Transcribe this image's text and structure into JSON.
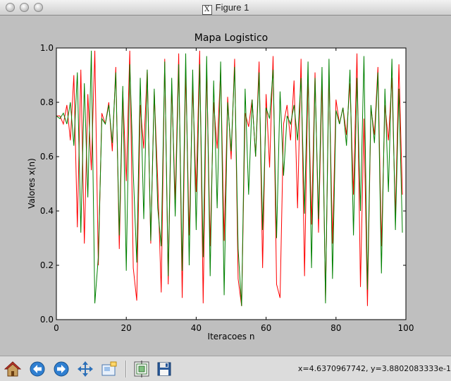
{
  "window": {
    "title": "Figure 1"
  },
  "toolbar": {
    "buttons": [
      {
        "name": "home-button",
        "icon": "home-icon"
      },
      {
        "name": "back-button",
        "icon": "back-arrow-icon"
      },
      {
        "name": "forward-button",
        "icon": "forward-arrow-icon"
      },
      {
        "name": "pan-button",
        "icon": "move-arrows-icon"
      },
      {
        "name": "zoom-button",
        "icon": "zoom-rect-icon"
      },
      {
        "name": "subplots-button",
        "icon": "subplots-icon"
      },
      {
        "name": "save-button",
        "icon": "floppy-disk-icon"
      }
    ],
    "coords": "x=4.6370967742, y=3.8802083333e-1"
  },
  "chart_data": {
    "type": "line",
    "title": "Mapa Logistico",
    "xlabel": "Iteracoes n",
    "ylabel": "Valores x(n)",
    "xlim": [
      0,
      100
    ],
    "ylim": [
      0.0,
      1.0
    ],
    "xticks": [
      "0",
      "20",
      "40",
      "60",
      "80",
      "100"
    ],
    "yticks": [
      "0.0",
      "0.2",
      "0.4",
      "0.6",
      "0.8",
      "1.0"
    ],
    "grid": false,
    "series": [
      {
        "color": "#ff0000",
        "x": [
          0,
          1,
          2,
          3,
          4,
          5,
          6,
          7,
          8,
          9,
          10,
          11,
          12,
          13,
          14,
          15,
          16,
          17,
          18,
          19,
          20,
          21,
          22,
          23,
          24,
          25,
          26,
          27,
          28,
          29,
          30,
          31,
          32,
          33,
          34,
          35,
          36,
          37,
          38,
          39,
          40,
          41,
          42,
          43,
          44,
          45,
          46,
          47,
          48,
          49,
          50,
          51,
          52,
          53,
          54,
          55,
          56,
          57,
          58,
          59,
          60,
          61,
          62,
          63,
          64,
          65,
          66,
          67,
          68,
          69,
          70,
          71,
          72,
          73,
          74,
          75,
          76,
          77,
          78,
          79,
          80,
          81,
          82,
          83,
          84,
          85,
          86,
          87,
          88,
          89,
          90,
          91,
          92,
          93,
          94,
          95,
          96,
          97,
          98,
          99
        ],
        "values": [
          0.75,
          0.75,
          0.72,
          0.79,
          0.66,
          0.9,
          0.34,
          0.92,
          0.28,
          0.83,
          0.55,
          0.99,
          0.2,
          0.76,
          0.72,
          0.8,
          0.62,
          0.93,
          0.26,
          0.84,
          0.51,
          0.99,
          0.19,
          0.07,
          0.79,
          0.63,
          0.92,
          0.28,
          0.84,
          0.51,
          0.1,
          0.96,
          0.13,
          0.86,
          0.44,
          0.98,
          0.08,
          0.92,
          0.31,
          0.86,
          0.47,
          0.99,
          0.06,
          0.93,
          0.27,
          0.8,
          0.63,
          0.92,
          0.29,
          0.82,
          0.59,
          0.96,
          0.15,
          0.05,
          0.76,
          0.71,
          0.81,
          0.6,
          0.95,
          0.19,
          0.83,
          0.56,
          0.97,
          0.13,
          0.08,
          0.72,
          0.79,
          0.66,
          0.88,
          0.41,
          0.96,
          0.16,
          0.9,
          0.35,
          0.91,
          0.32,
          0.88,
          0.07,
          0.92,
          0.28,
          0.81,
          0.72,
          0.78,
          0.68,
          0.87,
          0.46,
          0.98,
          0.12,
          0.74,
          0.05,
          0.78,
          0.68,
          0.93,
          0.27,
          0.79,
          0.66,
          0.89,
          0.38,
          0.94,
          0.46
        ]
      },
      {
        "color": "#008000",
        "x": [
          0,
          1,
          2,
          3,
          4,
          5,
          6,
          7,
          8,
          9,
          10,
          11,
          12,
          13,
          14,
          15,
          16,
          17,
          18,
          19,
          20,
          21,
          22,
          23,
          24,
          25,
          26,
          27,
          28,
          29,
          30,
          31,
          32,
          33,
          34,
          35,
          36,
          37,
          38,
          39,
          40,
          41,
          42,
          43,
          44,
          45,
          46,
          47,
          48,
          49,
          50,
          51,
          52,
          53,
          54,
          55,
          56,
          57,
          58,
          59,
          60,
          61,
          62,
          63,
          64,
          65,
          66,
          67,
          68,
          69,
          70,
          71,
          72,
          73,
          74,
          75,
          76,
          77,
          78,
          79,
          80,
          81,
          82,
          83,
          84,
          85,
          86,
          87,
          88,
          89,
          90,
          91,
          92,
          93,
          94,
          95,
          96,
          97,
          98,
          99
        ],
        "values": [
          0.75,
          0.74,
          0.76,
          0.72,
          0.8,
          0.64,
          0.91,
          0.32,
          0.87,
          0.45,
          0.99,
          0.06,
          0.23,
          0.74,
          0.72,
          0.79,
          0.65,
          0.91,
          0.31,
          0.86,
          0.18,
          0.94,
          0.54,
          0.21,
          0.89,
          0.37,
          0.92,
          0.29,
          0.85,
          0.41,
          0.27,
          0.95,
          0.16,
          0.89,
          0.38,
          0.94,
          0.18,
          0.98,
          0.2,
          0.92,
          0.33,
          0.94,
          0.23,
          0.97,
          0.16,
          0.88,
          0.41,
          0.95,
          0.09,
          0.8,
          0.62,
          0.93,
          0.26,
          0.05,
          0.85,
          0.46,
          0.81,
          0.6,
          0.91,
          0.33,
          0.78,
          0.74,
          0.92,
          0.3,
          0.84,
          0.53,
          0.75,
          0.72,
          0.79,
          0.66,
          0.89,
          0.39,
          0.95,
          0.19,
          0.89,
          0.37,
          0.93,
          0.06,
          0.96,
          0.15,
          0.77,
          0.72,
          0.78,
          0.64,
          0.92,
          0.31,
          0.89,
          0.4,
          0.97,
          0.11,
          0.79,
          0.65,
          0.91,
          0.17,
          0.85,
          0.47,
          0.96,
          0.33,
          0.85,
          0.32
        ]
      }
    ]
  }
}
